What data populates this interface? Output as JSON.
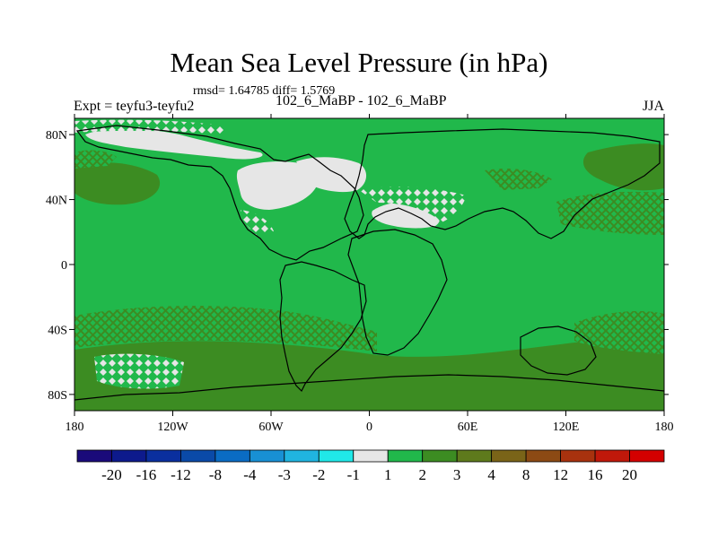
{
  "chart_data": {
    "type": "heatmap",
    "title": "Mean Sea Level Pressure (in hPa)",
    "stats_line": "rmsd= 1.64785 diff= 1.5769",
    "left_label": "Expt = teyfu3-teyfu2",
    "center_label": "102_6_MaBP - 102_6_MaBP",
    "right_label": "JJA",
    "x_ticks": [
      "180",
      "120W",
      "60W",
      "0",
      "60E",
      "120E",
      "180"
    ],
    "x_tick_values": [
      -180,
      -120,
      -60,
      0,
      60,
      120,
      180
    ],
    "y_ticks": [
      "80N",
      "40N",
      "0",
      "40S",
      "80S"
    ],
    "y_tick_values": [
      80,
      40,
      0,
      -40,
      -80
    ],
    "xlim": [
      -180,
      180
    ],
    "ylim": [
      -90,
      90
    ],
    "colorbar": {
      "labels": [
        "-20",
        "-16",
        "-12",
        "-8",
        "-4",
        "-3",
        "-2",
        "-1",
        "1",
        "2",
        "3",
        "4",
        "8",
        "12",
        "16",
        "20"
      ],
      "colors": [
        "#1a0a7a",
        "#0d1a8c",
        "#0a2f9e",
        "#0a4aa8",
        "#0a6cc4",
        "#1890d4",
        "#20b4e0",
        "#20e8e8",
        "#e6e6e6",
        "#21b84b",
        "#3c8c22",
        "#5e7a1c",
        "#7a6418",
        "#8c4a14",
        "#a8320e",
        "#c0180a",
        "#d40000"
      ]
    },
    "field_description_levels": {
      "dominant_band": "1 to 2",
      "high_band": "2 to 3",
      "low_band": "-1 to 1"
    }
  }
}
